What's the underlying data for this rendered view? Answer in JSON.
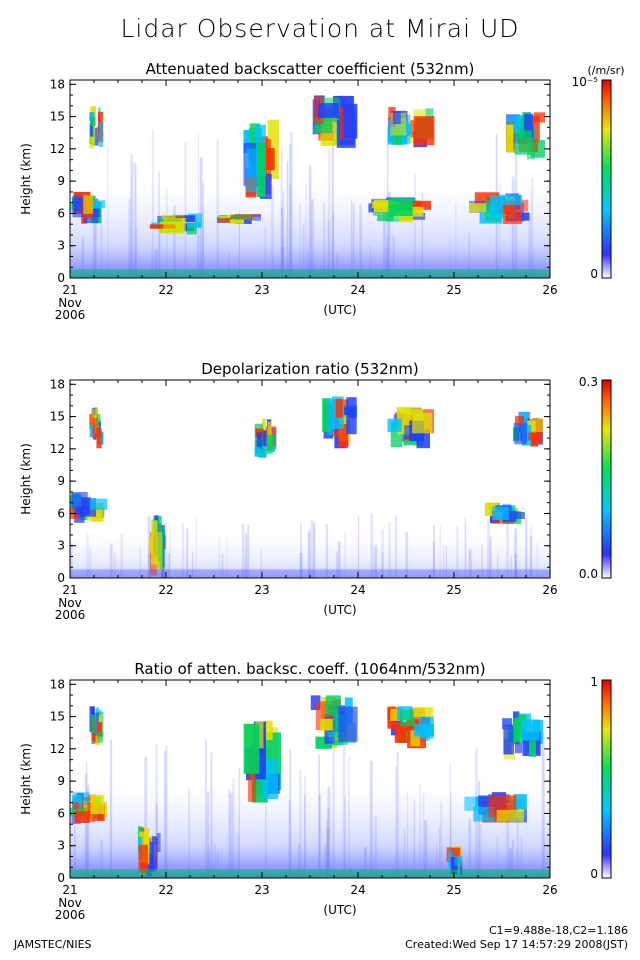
{
  "title": "Lidar Observation at Mirai UD",
  "footer": {
    "org": "JAMSTEC/NIES",
    "constants": "C1=9.488e-18,C2=1.186",
    "created": "Created:Wed Sep 17 14:57:29 2008(JST)"
  },
  "chart_data": [
    {
      "type": "heatmap",
      "title": "Attenuated backscatter coefficient (532nm)",
      "ylabel": "Height (km)",
      "xlabel": "(UTC)",
      "x_ticks": [
        "21",
        "22",
        "23",
        "24",
        "25",
        "26"
      ],
      "x_first_label": [
        "Nov",
        "2006"
      ],
      "xlim": [
        21,
        26
      ],
      "y_ticks": [
        "0",
        "3",
        "6",
        "9",
        "12",
        "15",
        "18"
      ],
      "ylim": [
        0,
        18.4
      ],
      "colorbar": {
        "unit": "(/m/sr)",
        "min_label": "0",
        "max_label": "10⁻⁵"
      },
      "clouds": [
        {
          "x": [
            21.0,
            21.4
          ],
          "y": [
            5.0,
            8.0
          ]
        },
        {
          "x": [
            21.2,
            21.35
          ],
          "y": [
            12.0,
            16.0
          ]
        },
        {
          "x": [
            21.8,
            22.4
          ],
          "y": [
            4.0,
            6.0
          ]
        },
        {
          "x": [
            22.5,
            23.0
          ],
          "y": [
            5.0,
            6.0
          ]
        },
        {
          "x": [
            22.8,
            23.2
          ],
          "y": [
            7.0,
            15.0
          ]
        },
        {
          "x": [
            23.5,
            24.0
          ],
          "y": [
            12.0,
            17.0
          ]
        },
        {
          "x": [
            24.1,
            24.8
          ],
          "y": [
            5.0,
            7.5
          ]
        },
        {
          "x": [
            24.3,
            24.8
          ],
          "y": [
            12.0,
            16.0
          ]
        },
        {
          "x": [
            25.1,
            25.8
          ],
          "y": [
            5.0,
            8.0
          ]
        },
        {
          "x": [
            25.5,
            25.95
          ],
          "y": [
            11.0,
            15.5
          ]
        }
      ]
    },
    {
      "type": "heatmap",
      "title": "Depolarization ratio (532nm)",
      "ylabel": "Height (km)",
      "xlabel": "(UTC)",
      "x_ticks": [
        "21",
        "22",
        "23",
        "24",
        "25",
        "26"
      ],
      "x_first_label": [
        "Nov",
        "2006"
      ],
      "xlim": [
        21,
        26
      ],
      "y_ticks": [
        "0",
        "3",
        "6",
        "9",
        "12",
        "15",
        "18"
      ],
      "ylim": [
        0,
        18.4
      ],
      "colorbar": {
        "unit": "",
        "min_label": "0.0",
        "max_label": "0.3"
      },
      "clouds": [
        {
          "x": [
            21.0,
            21.4
          ],
          "y": [
            5.0,
            8.0
          ]
        },
        {
          "x": [
            21.2,
            21.35
          ],
          "y": [
            12.0,
            16.0
          ]
        },
        {
          "x": [
            21.8,
            22.0
          ],
          "y": [
            0.0,
            6.0
          ]
        },
        {
          "x": [
            22.9,
            23.15
          ],
          "y": [
            11.0,
            15.0
          ]
        },
        {
          "x": [
            23.6,
            24.0
          ],
          "y": [
            12.0,
            17.0
          ]
        },
        {
          "x": [
            24.3,
            24.8
          ],
          "y": [
            12.0,
            16.0
          ]
        },
        {
          "x": [
            25.3,
            25.8
          ],
          "y": [
            5.0,
            7.0
          ]
        },
        {
          "x": [
            25.6,
            25.95
          ],
          "y": [
            12.0,
            15.5
          ]
        }
      ]
    },
    {
      "type": "heatmap",
      "title": "Ratio of atten. backsc. coeff. (1064nm/532nm)",
      "ylabel": "Height (km)",
      "xlabel": "(UTC)",
      "x_ticks": [
        "21",
        "22",
        "23",
        "24",
        "25",
        "26"
      ],
      "x_first_label": [
        "Nov",
        "2006"
      ],
      "xlim": [
        21,
        26
      ],
      "y_ticks": [
        "0",
        "3",
        "6",
        "9",
        "12",
        "15",
        "18"
      ],
      "ylim": [
        0,
        18.4
      ],
      "colorbar": {
        "unit": "",
        "min_label": "0",
        "max_label": "1"
      },
      "clouds": [
        {
          "x": [
            21.0,
            21.4
          ],
          "y": [
            5.0,
            8.0
          ]
        },
        {
          "x": [
            21.2,
            21.35
          ],
          "y": [
            12.0,
            16.0
          ]
        },
        {
          "x": [
            21.7,
            21.95
          ],
          "y": [
            0.0,
            5.0
          ]
        },
        {
          "x": [
            22.8,
            23.2
          ],
          "y": [
            7.0,
            15.0
          ]
        },
        {
          "x": [
            23.5,
            24.0
          ],
          "y": [
            12.0,
            17.0
          ]
        },
        {
          "x": [
            24.3,
            24.8
          ],
          "y": [
            12.0,
            16.0
          ]
        },
        {
          "x": [
            24.9,
            25.1
          ],
          "y": [
            0.0,
            3.0
          ]
        },
        {
          "x": [
            25.1,
            25.8
          ],
          "y": [
            5.0,
            8.0
          ]
        },
        {
          "x": [
            25.5,
            25.95
          ],
          "y": [
            11.0,
            15.5
          ]
        }
      ]
    }
  ]
}
